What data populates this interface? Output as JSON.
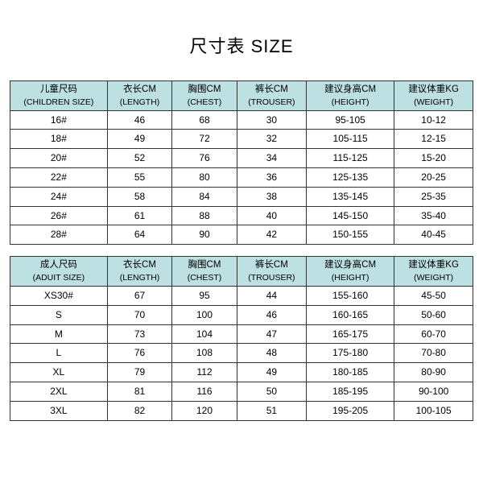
{
  "title": "尺寸表 SIZE",
  "header_bg": "#bde0e2",
  "table1": {
    "columns": [
      {
        "line1": "儿童尺码",
        "line2": "(CHILDREN SIZE)"
      },
      {
        "line1": "衣长CM",
        "line2": "(LENGTH)"
      },
      {
        "line1": "胸围CM",
        "line2": "(CHEST)"
      },
      {
        "line1": "裤长CM",
        "line2": "(TROUSER)"
      },
      {
        "line1": "建议身高CM",
        "line2": "(HEIGHT)"
      },
      {
        "line1": "建议体重KG",
        "line2": "(WEIGHT)"
      }
    ],
    "rows": [
      [
        "16#",
        "46",
        "68",
        "30",
        "95-105",
        "10-12"
      ],
      [
        "18#",
        "49",
        "72",
        "32",
        "105-115",
        "12-15"
      ],
      [
        "20#",
        "52",
        "76",
        "34",
        "115-125",
        "15-20"
      ],
      [
        "22#",
        "55",
        "80",
        "36",
        "125-135",
        "20-25"
      ],
      [
        "24#",
        "58",
        "84",
        "38",
        "135-145",
        "25-35"
      ],
      [
        "26#",
        "61",
        "88",
        "40",
        "145-150",
        "35-40"
      ],
      [
        "28#",
        "64",
        "90",
        "42",
        "150-155",
        "40-45"
      ]
    ]
  },
  "table2": {
    "columns": [
      {
        "line1": "成人尺码",
        "line2": "(ADUIT SIZE)"
      },
      {
        "line1": "衣长CM",
        "line2": "(LENGTH)"
      },
      {
        "line1": "胸围CM",
        "line2": "(CHEST)"
      },
      {
        "line1": "裤长CM",
        "line2": "(TROUSER)"
      },
      {
        "line1": "建议身高CM",
        "line2": "(HEIGHT)"
      },
      {
        "line1": "建议体重KG",
        "line2": "(WEIGHT)"
      }
    ],
    "rows": [
      [
        "XS30#",
        "67",
        "95",
        "44",
        "155-160",
        "45-50"
      ],
      [
        "S",
        "70",
        "100",
        "46",
        "160-165",
        "50-60"
      ],
      [
        "M",
        "73",
        "104",
        "47",
        "165-175",
        "60-70"
      ],
      [
        "L",
        "76",
        "108",
        "48",
        "175-180",
        "70-80"
      ],
      [
        "XL",
        "79",
        "112",
        "49",
        "180-185",
        "80-90"
      ],
      [
        "2XL",
        "81",
        "116",
        "50",
        "185-195",
        "90-100"
      ],
      [
        "3XL",
        "82",
        "120",
        "51",
        "195-205",
        "100-105"
      ]
    ]
  }
}
